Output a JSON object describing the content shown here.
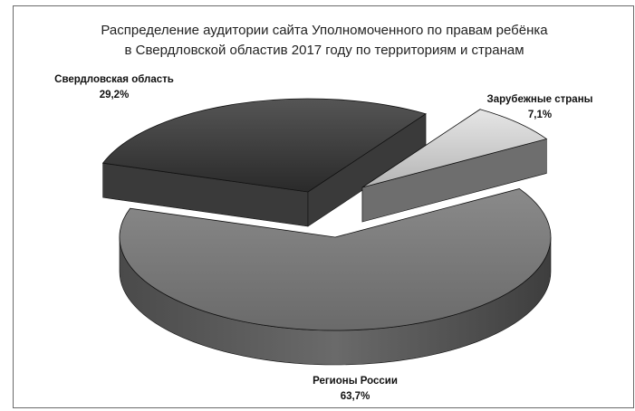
{
  "chart_data": {
    "type": "pie",
    "style": "3d-exploded",
    "title_line1": "Распределение аудитории сайта Уполномоченного  по правам ребёнка",
    "title_line2": "в Свердловской областив 2017 году по территориям и странам",
    "slices": [
      {
        "name": "Свердловская область",
        "value": 29.2,
        "label": "29,2%",
        "color": "#2e2e2e"
      },
      {
        "name": "Зарубежные страны",
        "value": 7.1,
        "label": "7,1%",
        "color": "#cfcfcf"
      },
      {
        "name": "Регионы России",
        "value": 63.7,
        "label": "63,7%",
        "color": "#6f6f6f"
      }
    ]
  }
}
